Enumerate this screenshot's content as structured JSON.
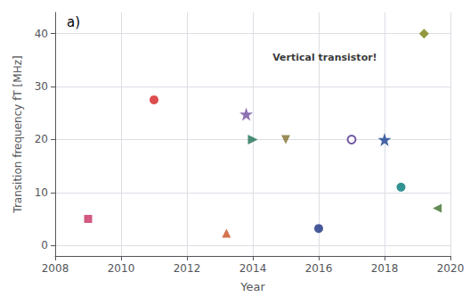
{
  "chart_data": {
    "type": "scatter",
    "title": "a)",
    "xlabel": "Year",
    "ylabel": "Transition frequency fT [MHz]",
    "xlim": [
      2008,
      2020
    ],
    "xticks": [
      2008,
      2010,
      2012,
      2014,
      2016,
      2018,
      2020
    ],
    "ylim": [
      -2,
      44
    ],
    "yticks": [
      0,
      10,
      20,
      30,
      40
    ],
    "grid": true,
    "annotations": [
      {
        "text": "Vertical transistor!",
        "x": 2014.6,
        "y": 34.5
      }
    ],
    "series": [
      {
        "x": [
          2009
        ],
        "values": [
          5
        ],
        "marker": "square",
        "color": "#c83060"
      },
      {
        "x": [
          2011
        ],
        "values": [
          27.5
        ],
        "marker": "circle",
        "color": "#d42020"
      },
      {
        "x": [
          2013.2
        ],
        "values": [
          2.3
        ],
        "marker": "triangle",
        "color": "#c85020"
      },
      {
        "x": [
          2013.8
        ],
        "values": [
          24.8
        ],
        "marker": "star",
        "color": "#7050a0"
      },
      {
        "x": [
          2014.0
        ],
        "values": [
          20.0
        ],
        "marker": "triangle-right",
        "color": "#1e7055"
      },
      {
        "x": [
          2015.0
        ],
        "values": [
          20.0
        ],
        "marker": "triangle-down",
        "color": "#807030"
      },
      {
        "x": [
          2016.0
        ],
        "values": [
          3.2
        ],
        "marker": "circle",
        "color": "#1a3080"
      },
      {
        "x": [
          2017.0
        ],
        "values": [
          20.0
        ],
        "marker": "circle-open",
        "color": "#503090"
      },
      {
        "x": [
          2018.0
        ],
        "values": [
          20.0
        ],
        "marker": "star",
        "color": "#1a4090"
      },
      {
        "x": [
          2018.5
        ],
        "values": [
          11.0
        ],
        "marker": "circle",
        "color": "#007878"
      },
      {
        "x": [
          2019.2
        ],
        "values": [
          40.0
        ],
        "marker": "diamond",
        "color": "#7a8010"
      },
      {
        "x": [
          2019.6
        ],
        "values": [
          7.0
        ],
        "marker": "triangle-left",
        "color": "#407030"
      }
    ]
  }
}
